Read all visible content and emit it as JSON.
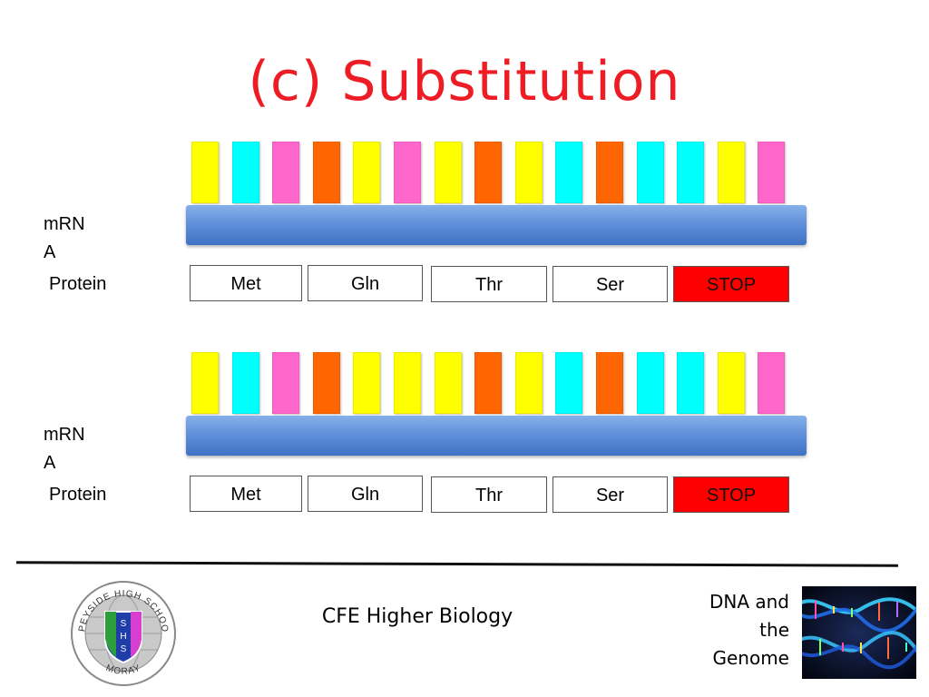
{
  "title": "(c) Substitution",
  "colors": {
    "yellow": "#ffff00",
    "cyan": "#00ffff",
    "pink": "#ff66cc",
    "orange": "#ff6600",
    "stop_red": "#ff0000",
    "title_red": "#ee1c24",
    "strand_blue": "#5d8ed9"
  },
  "sequences": [
    {
      "mrna_label_line1": "mRN",
      "mrna_label_line2": "A",
      "protein_label": "Protein",
      "bases": [
        "yellow",
        "cyan",
        "pink",
        "orange",
        "yellow",
        "pink",
        "yellow",
        "orange",
        "yellow",
        "cyan",
        "orange",
        "cyan",
        "cyan",
        "yellow",
        "pink"
      ],
      "codons": [
        "Met",
        "Gln",
        "Thr",
        "Ser",
        "STOP"
      ]
    },
    {
      "mrna_label_line1": "mRN",
      "mrna_label_line2": "A",
      "protein_label": "Protein",
      "bases": [
        "yellow",
        "cyan",
        "pink",
        "orange",
        "yellow",
        "yellow",
        "yellow",
        "orange",
        "yellow",
        "cyan",
        "orange",
        "cyan",
        "cyan",
        "yellow",
        "pink"
      ],
      "codons": [
        "Met",
        "Gln",
        "Thr",
        "Ser",
        "STOP"
      ]
    }
  ],
  "footer": {
    "course": "CFE Higher Biology",
    "unit_line1": "DNA and",
    "unit_line2": "the",
    "unit_line3": "Genome",
    "logo": {
      "icon": "school-crest-icon",
      "top_text": "SPEYSIDE HIGH SCHOOL",
      "bottom_text": "MORAY",
      "letters": [
        "S",
        "H",
        "S"
      ]
    },
    "image_icon": "dna-helix-image"
  }
}
